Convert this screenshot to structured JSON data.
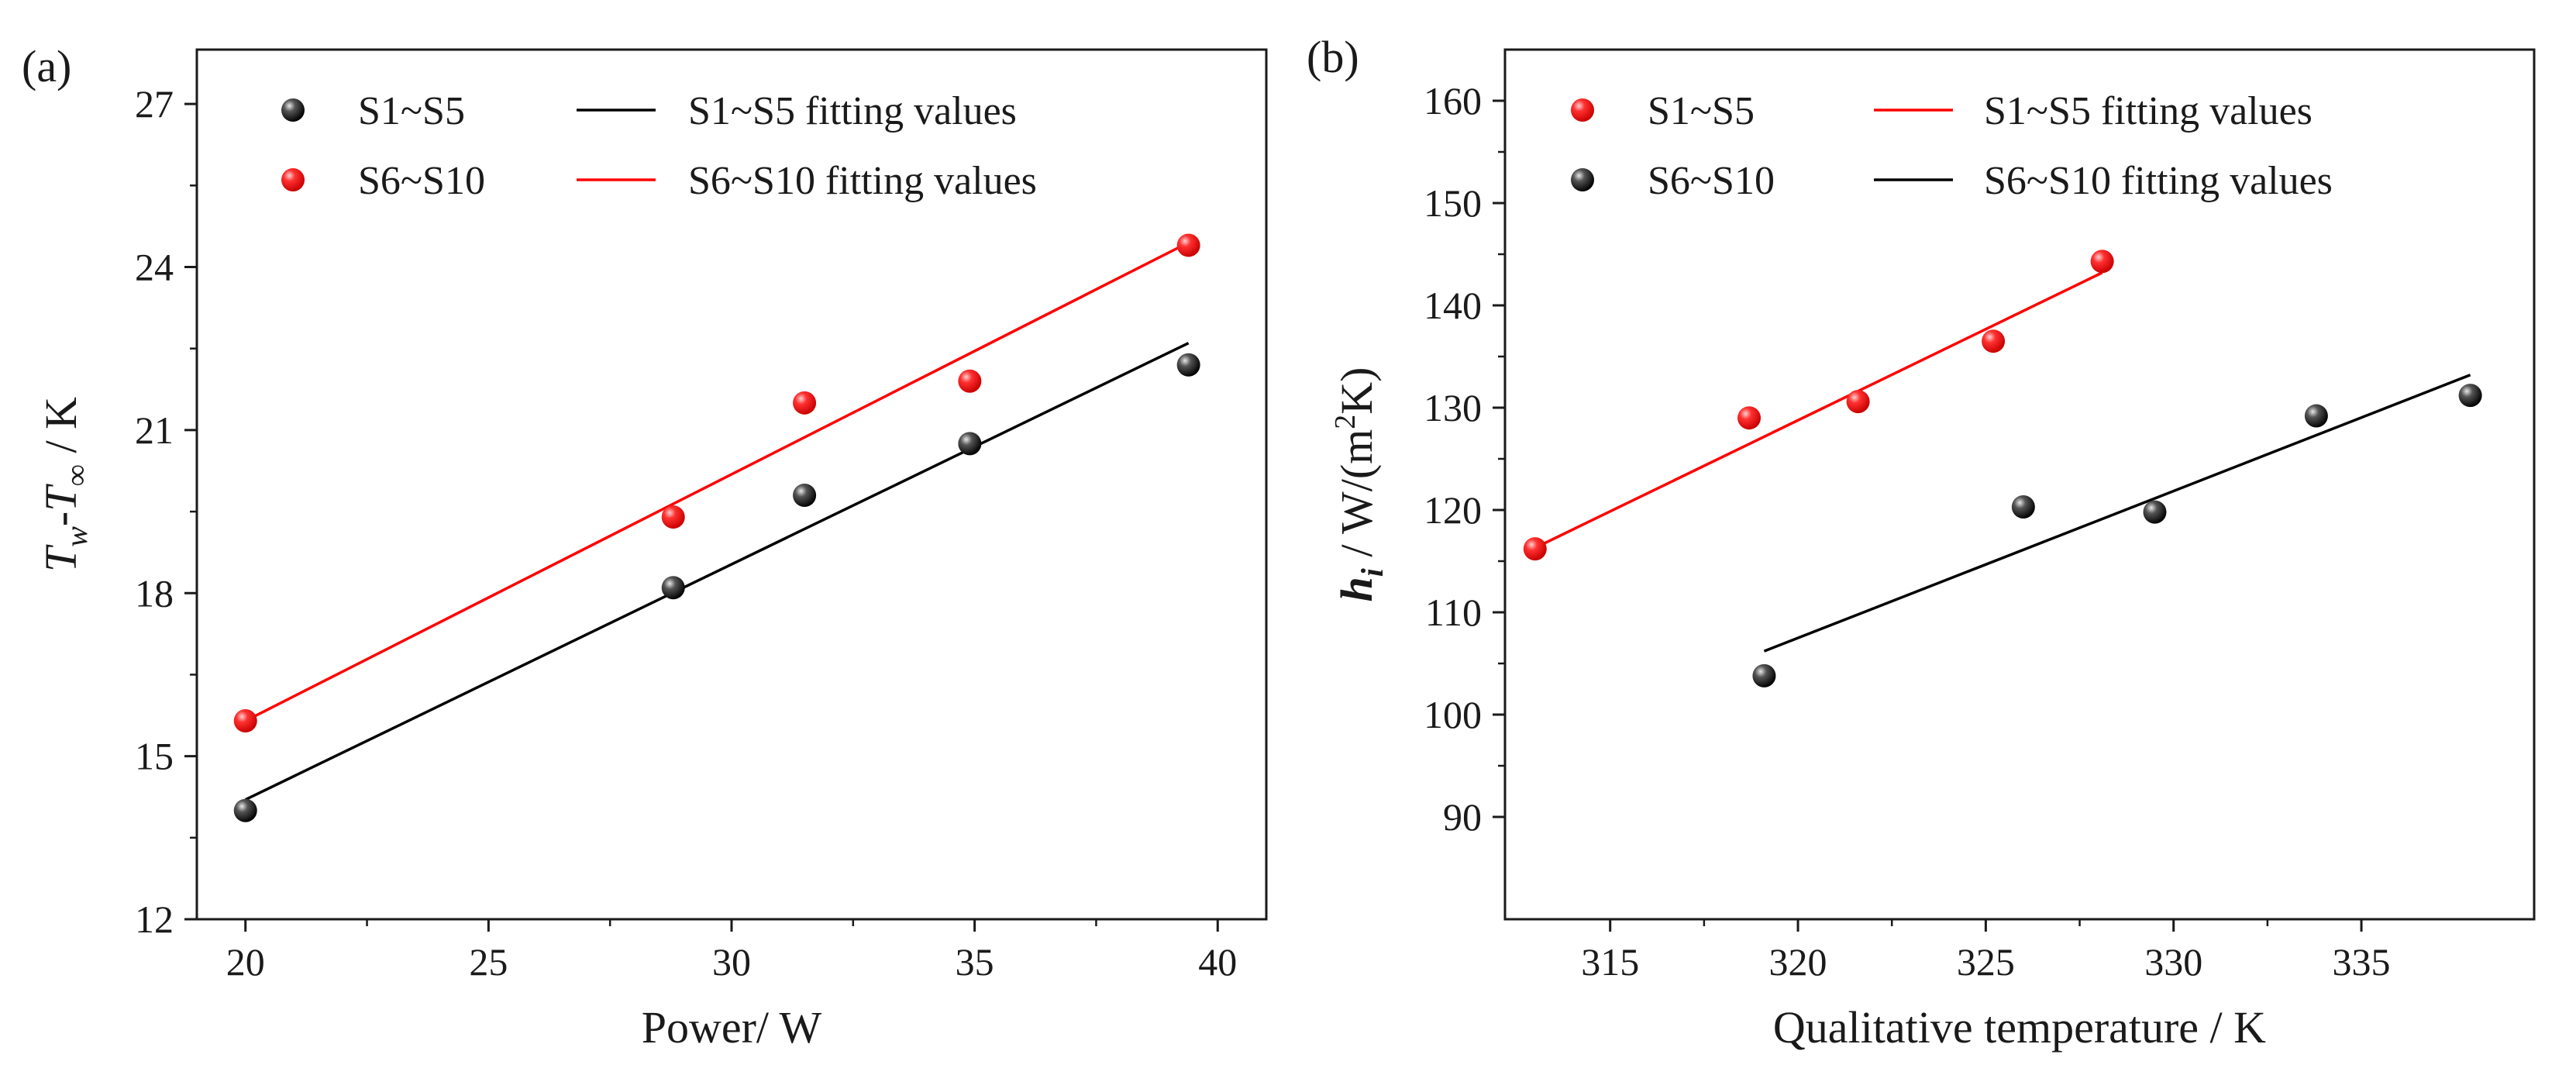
{
  "chart_data": [
    {
      "panel_label": "(a)",
      "type": "scatter",
      "title": "",
      "xlabel": "Power/ W",
      "ylabel": {
        "main1": "T",
        "sub1": "w",
        "dash": "-",
        "main2": "T",
        "sub2": "∞",
        "unit": " / K"
      },
      "xlim": [
        19,
        41
      ],
      "ylim": [
        12,
        28
      ],
      "xticks": [
        20,
        25,
        30,
        35,
        40
      ],
      "yticks": [
        12,
        15,
        18,
        21,
        24,
        27
      ],
      "legend_position": "top-left",
      "series": [
        {
          "name": "S1~S5",
          "color": "#000000",
          "kind": "points",
          "x": [
            20,
            28.8,
            31.5,
            34.9,
            39.4
          ],
          "y": [
            14.0,
            18.1,
            19.8,
            20.75,
            22.2
          ]
        },
        {
          "name": "S6~S10",
          "color": "#ff0000",
          "kind": "points",
          "x": [
            20,
            28.8,
            31.5,
            34.9,
            39.4
          ],
          "y": [
            15.65,
            19.4,
            21.5,
            21.9,
            24.4
          ]
        },
        {
          "name": "S1~S5 fitting values",
          "color": "#000000",
          "kind": "line",
          "x": [
            20,
            39.4
          ],
          "y": [
            14.2,
            22.6
          ]
        },
        {
          "name": "S6~S10 fitting values",
          "color": "#ff0000",
          "kind": "line",
          "x": [
            20,
            39.4
          ],
          "y": [
            15.65,
            24.45
          ]
        }
      ]
    },
    {
      "panel_label": "(b)",
      "type": "scatter",
      "title": "",
      "xlabel": "Qualitative temperature / K",
      "ylabel": {
        "main1": "h",
        "sub1": "i",
        "unit1": " / W/(m",
        "sup": "2",
        "unit2": "K)"
      },
      "xlim": [
        312.2,
        339.6
      ],
      "ylim": [
        80,
        165
      ],
      "xticks": [
        315,
        320,
        325,
        330,
        335
      ],
      "yticks": [
        90,
        100,
        110,
        120,
        130,
        140,
        150,
        160
      ],
      "legend_position": "top-left",
      "series": [
        {
          "name": "S1~S5",
          "color": "#ff0000",
          "kind": "points",
          "x": [
            313.0,
            318.7,
            321.6,
            325.2,
            328.1
          ],
          "y": [
            116.2,
            129.0,
            130.6,
            136.5,
            144.3
          ]
        },
        {
          "name": "S6~S10",
          "color": "#000000",
          "kind": "points",
          "x": [
            319.1,
            326.0,
            329.5,
            333.8,
            337.9
          ],
          "y": [
            103.8,
            120.3,
            119.8,
            129.2,
            131.2
          ]
        },
        {
          "name": "S1~S5 fitting values",
          "color": "#ff0000",
          "kind": "line",
          "x": [
            313.0,
            328.1
          ],
          "y": [
            116.3,
            143.2
          ]
        },
        {
          "name": "S6~S10 fitting values",
          "color": "#000000",
          "kind": "line",
          "x": [
            319.1,
            337.9
          ],
          "y": [
            106.2,
            133.2
          ]
        }
      ]
    }
  ]
}
